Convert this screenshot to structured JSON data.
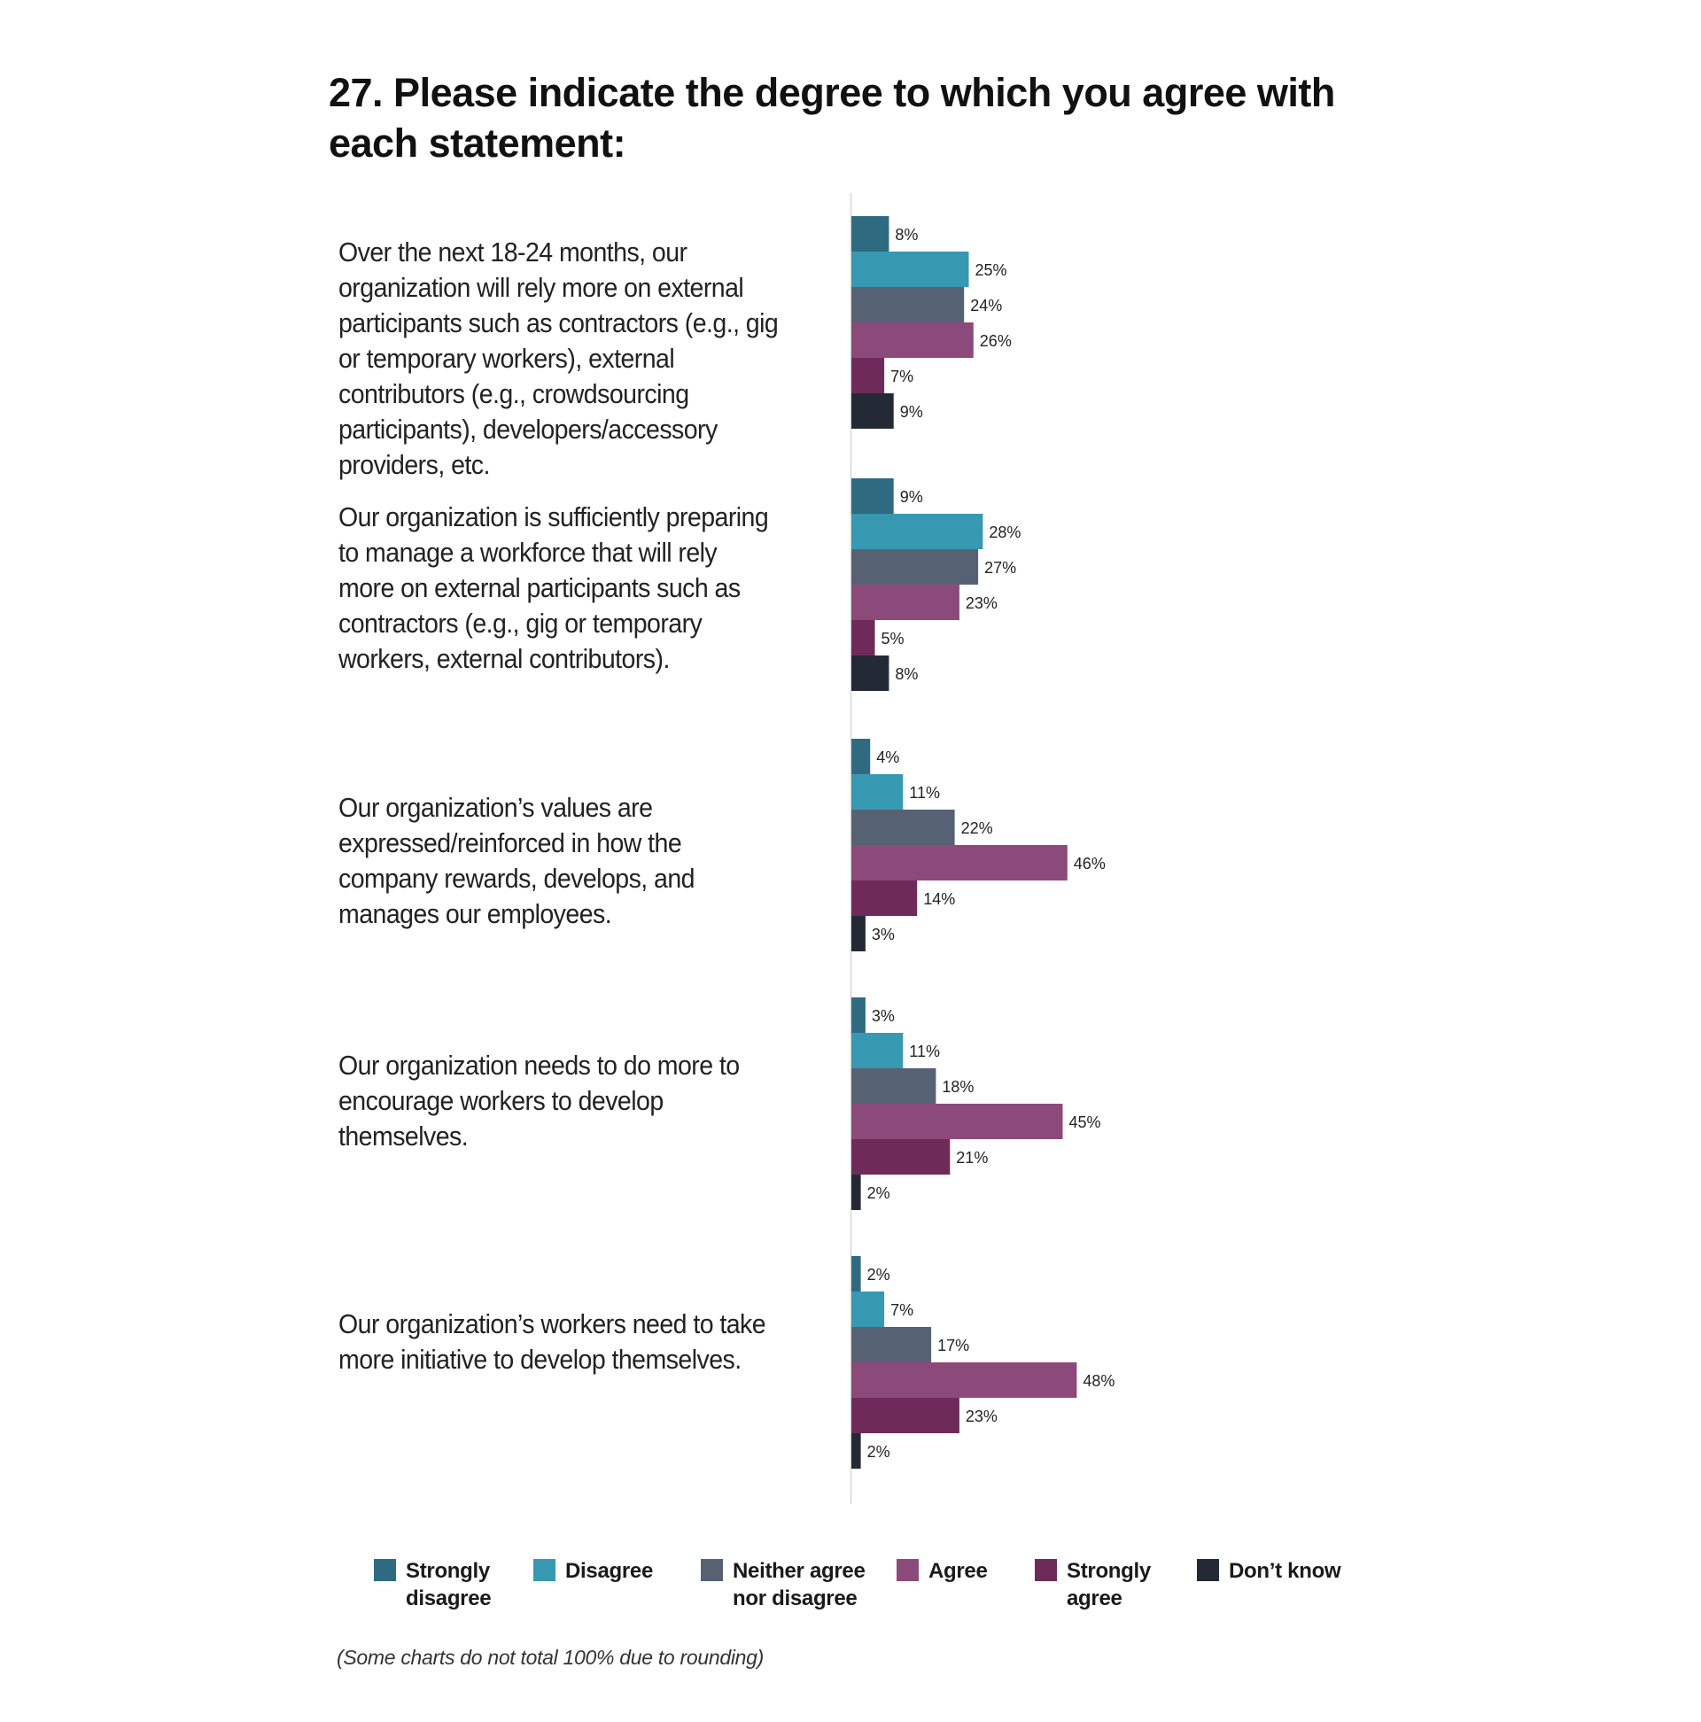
{
  "page": {
    "title": "27. Please indicate the degree to which you agree with each statement:",
    "footnote": "(Some charts do not total 100% due to rounding)"
  },
  "legend": [
    {
      "label": "Strongly\ndisagree",
      "color": "#2e6b80"
    },
    {
      "label": "Disagree",
      "color": "#3799b1"
    },
    {
      "label": "Neither agree\nnor disagree",
      "color": "#566274"
    },
    {
      "label": "Agree",
      "color": "#8c4a7b"
    },
    {
      "label": "Strongly\nagree",
      "color": "#6e2b5a"
    },
    {
      "label": "Don’t know",
      "color": "#232a36"
    }
  ],
  "chart_data": {
    "type": "bar",
    "orientation": "horizontal",
    "title": "27. Please indicate the degree to which you agree with each statement:",
    "value_suffix": "%",
    "xlim": [
      0,
      50
    ],
    "grid": false,
    "legend_position": "bottom",
    "series_names": [
      "Strongly disagree",
      "Disagree",
      "Neither agree nor disagree",
      "Agree",
      "Strongly agree",
      "Don’t know"
    ],
    "series_colors": [
      "#2e6b80",
      "#3799b1",
      "#566274",
      "#8c4a7b",
      "#6e2b5a",
      "#232a36"
    ],
    "groups": [
      {
        "statement": "Over the next 18-24 months, our organization will rely more on external participants such as contractors (e.g., gig or temporary workers), external contributors (e.g., crowdsourcing participants), developers/accessory providers, etc.",
        "values": [
          8,
          25,
          24,
          26,
          7,
          9
        ]
      },
      {
        "statement": "Our organization is sufficiently preparing to manage a workforce that will rely more on external participants such as contractors (e.g., gig or temporary workers, external contributors).",
        "values": [
          9,
          28,
          27,
          23,
          5,
          8
        ]
      },
      {
        "statement": "Our organization’s values are expressed/reinforced in how the company rewards, develops, and manages our employees.",
        "values": [
          4,
          11,
          22,
          46,
          14,
          3
        ]
      },
      {
        "statement": "Our organization needs to do more to encourage workers to develop themselves.",
        "values": [
          3,
          11,
          18,
          45,
          21,
          2
        ]
      },
      {
        "statement": "Our organization’s workers need to take more initiative to develop themselves.",
        "values": [
          2,
          7,
          17,
          48,
          23,
          2
        ]
      }
    ]
  }
}
